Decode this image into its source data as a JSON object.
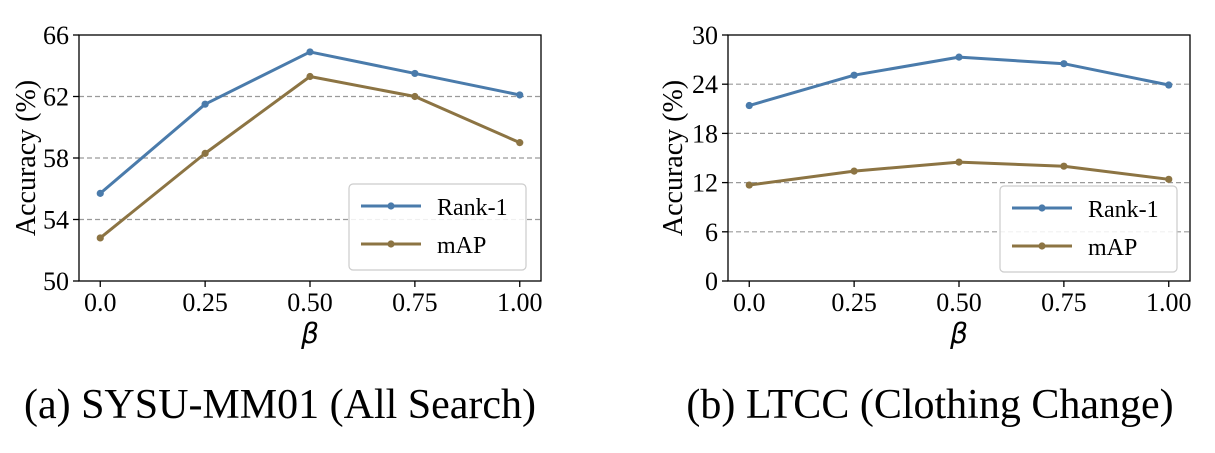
{
  "chart_data": [
    {
      "type": "line",
      "caption": "(a) SYSU-MM01 (All Search)",
      "xlabel": "β",
      "ylabel": "Accuracy (%)",
      "categories": [
        "0.0",
        "0.25",
        "0.50",
        "0.75",
        "1.00"
      ],
      "x": [
        0.0,
        0.25,
        0.5,
        0.75,
        1.0
      ],
      "ylim": [
        50,
        66
      ],
      "yticks": [
        50,
        54,
        58,
        62,
        66
      ],
      "ytick_labels": [
        "50",
        "54",
        "58",
        "62",
        "66"
      ],
      "grid": "horizontal-dashed",
      "legend_position": "lower-right",
      "series": [
        {
          "name": "Rank-1",
          "color": "#4a7bab",
          "values": [
            55.7,
            61.5,
            64.9,
            63.5,
            62.1
          ]
        },
        {
          "name": "mAP",
          "color": "#8c7443",
          "values": [
            52.8,
            58.3,
            63.3,
            62.0,
            59.0
          ]
        }
      ]
    },
    {
      "type": "line",
      "caption": "(b) LTCC (Clothing Change)",
      "xlabel": "β",
      "ylabel": "Accuracy (%)",
      "categories": [
        "0.0",
        "0.25",
        "0.50",
        "0.75",
        "1.00"
      ],
      "x": [
        0.0,
        0.25,
        0.5,
        0.75,
        1.0
      ],
      "ylim": [
        0,
        30
      ],
      "yticks": [
        0,
        6,
        12,
        18,
        24,
        30
      ],
      "ytick_labels": [
        "0",
        "6",
        "12",
        "18",
        "24",
        "30"
      ],
      "grid": "horizontal-dashed",
      "legend_position": "lower-right",
      "series": [
        {
          "name": "Rank-1",
          "color": "#4a7bab",
          "values": [
            21.4,
            25.1,
            27.3,
            26.5,
            23.9
          ]
        },
        {
          "name": "mAP",
          "color": "#8c7443",
          "values": [
            11.7,
            13.4,
            14.5,
            14.0,
            12.4
          ]
        }
      ]
    }
  ]
}
